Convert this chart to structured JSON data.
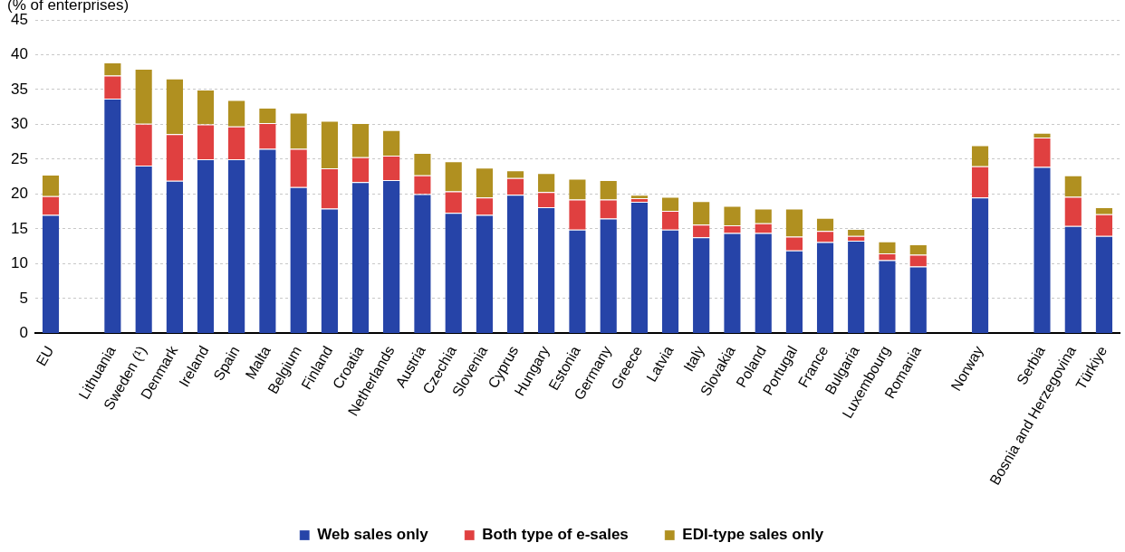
{
  "chart_data": {
    "type": "bar",
    "stacked": true,
    "ylabel": "(% of enterprises)",
    "categories": [
      "EU",
      null,
      "Lithuania",
      "Sweden (¹)",
      "Denmark",
      "Ireland",
      "Spain",
      "Malta",
      "Belgium",
      "Finland",
      "Croatia",
      "Netherlands",
      "Austria",
      "Czechia",
      "Slovenia",
      "Cyprus",
      "Hungary",
      "Estonia",
      "Germany",
      "Greece",
      "Latvia",
      "Italy",
      "Slovakia",
      "Poland",
      "Portugal",
      "France",
      "Bulgaria",
      "Luxembourg",
      "Romania",
      null,
      "Norway",
      null,
      "Serbia",
      "Bosnia and Herzegovina",
      "Türkiye"
    ],
    "series": [
      {
        "name": "Web sales only",
        "color": "#2644a8",
        "values": [
          17.0,
          null,
          33.7,
          24.1,
          21.9,
          25.0,
          25.0,
          26.5,
          21.0,
          17.9,
          21.7,
          22.0,
          20.0,
          17.3,
          17.0,
          19.9,
          18.1,
          14.9,
          16.5,
          18.9,
          14.9,
          13.8,
          14.4,
          14.4,
          11.9,
          13.1,
          13.3,
          10.5,
          9.6,
          null,
          19.5,
          null,
          23.9,
          15.4,
          14.0
        ]
      },
      {
        "name": "Both type of e-sales",
        "color": "#e04040",
        "values": [
          2.7,
          null,
          3.3,
          6.0,
          6.7,
          5.0,
          4.7,
          3.7,
          5.5,
          5.8,
          3.6,
          3.5,
          2.7,
          3.1,
          2.5,
          2.4,
          2.2,
          4.3,
          2.7,
          0.5,
          2.7,
          1.8,
          1.1,
          1.4,
          2.0,
          1.6,
          0.7,
          1.0,
          1.7,
          null,
          4.5,
          null,
          4.2,
          4.2,
          3.1
        ]
      },
      {
        "name": "EDI-type sales only",
        "color": "#b09020",
        "values": [
          3.1,
          null,
          1.9,
          7.9,
          8.0,
          5.0,
          3.8,
          2.2,
          5.2,
          6.8,
          4.9,
          3.7,
          3.2,
          4.3,
          4.3,
          1.1,
          2.7,
          3.0,
          2.8,
          0.5,
          2.0,
          3.4,
          2.8,
          2.1,
          4.0,
          1.9,
          1.0,
          1.7,
          1.5,
          null,
          3.0,
          null,
          0.7,
          3.1,
          1.0
        ]
      }
    ],
    "ylim": [
      0,
      45
    ],
    "yticks": [
      0,
      5,
      10,
      15,
      20,
      25,
      30,
      35,
      40,
      45
    ],
    "grid": "y",
    "legend": "bottom"
  }
}
